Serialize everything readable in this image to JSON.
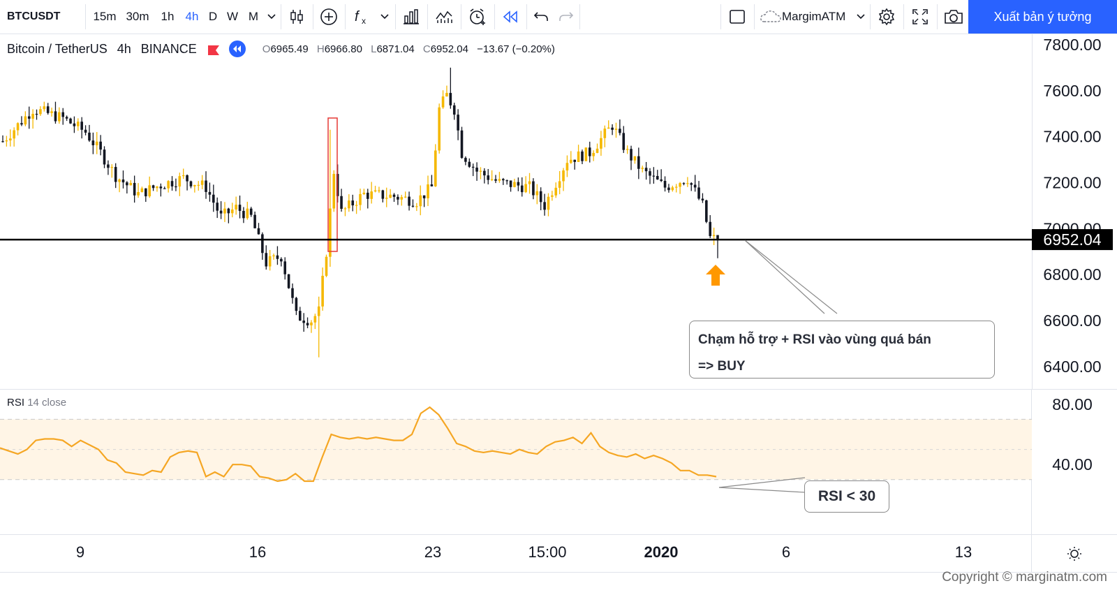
{
  "toolbar": {
    "symbol": "BTCUSDT",
    "timeframes": [
      "15m",
      "30m",
      "1h",
      "4h",
      "D",
      "W",
      "M"
    ],
    "active_timeframe": "4h",
    "account_label": "MargimATM",
    "publish_label": "Xuất bản ý tưởng"
  },
  "legend": {
    "title": "Bitcoin / TetherUS",
    "interval": "4h",
    "exchange": "BINANCE",
    "o_label": "O",
    "o_value": "6965.49",
    "h_label": "H",
    "h_value": "6966.80",
    "l_label": "L",
    "l_value": "6871.04",
    "c_label": "C",
    "c_value": "6952.04",
    "change": "−13.67 (−0.20%)"
  },
  "price_axis": {
    "ticks": [
      "7800.00",
      "7600.00",
      "7400.00",
      "7200.00",
      "7000.00",
      "6800.00",
      "6600.00",
      "6400.00"
    ],
    "current_price_label": "6952.04",
    "current_price": 6952.04
  },
  "annotations": {
    "buy_callout_line1": "Chạm hỗ trợ + RSI vào vùng quá bán",
    "buy_callout_line2": "=> BUY",
    "rsi_callout": "RSI < 30"
  },
  "rsi": {
    "title": "RSI",
    "params": "14 close",
    "ticks": [
      "80.00",
      "40.00"
    ],
    "band_upper": 70,
    "band_middle": 50,
    "band_lower": 30
  },
  "time_axis": {
    "labels": [
      "9",
      "16",
      "23",
      "15:00",
      "2020",
      "6",
      "13"
    ]
  },
  "copyright": "Copyright © marginatm.com",
  "colors": {
    "up_candle": "#f5b800",
    "down_candle": "#131722",
    "rsi_line": "#f5a623",
    "arrow": "#ff9800",
    "accent": "#2962ff",
    "highlight_box": "#e53935"
  },
  "chart_data": {
    "type": "candlestick",
    "symbol": "BTCUSDT",
    "interval": "4h",
    "ylim": [
      6350,
      7850
    ],
    "support_level": 6952.04,
    "close_path": [
      {
        "t": 0,
        "c": 7380
      },
      {
        "t": 8,
        "c": 7520
      },
      {
        "t": 16,
        "c": 7480
      },
      {
        "t": 22,
        "c": 7420
      },
      {
        "t": 26,
        "c": 7330
      },
      {
        "t": 30,
        "c": 7230
      },
      {
        "t": 36,
        "c": 7150
      },
      {
        "t": 42,
        "c": 7190
      },
      {
        "t": 48,
        "c": 7220
      },
      {
        "t": 54,
        "c": 7180
      },
      {
        "t": 58,
        "c": 7050
      },
      {
        "t": 62,
        "c": 7090
      },
      {
        "t": 66,
        "c": 7050
      },
      {
        "t": 70,
        "c": 6850
      },
      {
        "t": 74,
        "c": 6880
      },
      {
        "t": 78,
        "c": 6620
      },
      {
        "t": 82,
        "c": 6600
      },
      {
        "t": 84,
        "c": 6640
      },
      {
        "t": 86,
        "c": 6900
      },
      {
        "t": 88,
        "c": 7250
      },
      {
        "t": 90,
        "c": 7070
      },
      {
        "t": 96,
        "c": 7150
      },
      {
        "t": 104,
        "c": 7140
      },
      {
        "t": 110,
        "c": 7120
      },
      {
        "t": 114,
        "c": 7180
      },
      {
        "t": 116,
        "c": 7520
      },
      {
        "t": 118,
        "c": 7580
      },
      {
        "t": 120,
        "c": 7520
      },
      {
        "t": 122,
        "c": 7330
      },
      {
        "t": 126,
        "c": 7250
      },
      {
        "t": 132,
        "c": 7200
      },
      {
        "t": 140,
        "c": 7180
      },
      {
        "t": 144,
        "c": 7100
      },
      {
        "t": 150,
        "c": 7300
      },
      {
        "t": 156,
        "c": 7330
      },
      {
        "t": 162,
        "c": 7450
      },
      {
        "t": 166,
        "c": 7330
      },
      {
        "t": 170,
        "c": 7250
      },
      {
        "t": 176,
        "c": 7180
      },
      {
        "t": 182,
        "c": 7220
      },
      {
        "t": 186,
        "c": 7100
      },
      {
        "t": 188,
        "c": 6960
      },
      {
        "t": 190,
        "c": 6952
      }
    ],
    "rsi_values": [
      51,
      49,
      47,
      50,
      56,
      57,
      57,
      56,
      52,
      56,
      53,
      50,
      43,
      41,
      35,
      34,
      33,
      36,
      35,
      45,
      48,
      49,
      48,
      32,
      35,
      32,
      40,
      40,
      39,
      32,
      31,
      29,
      30,
      34,
      29,
      29,
      45,
      60,
      58,
      57,
      58,
      57,
      58,
      57,
      56,
      56,
      60,
      74,
      78,
      73,
      64,
      54,
      52,
      49,
      48,
      49,
      48,
      47,
      50,
      48,
      47,
      52,
      55,
      56,
      58,
      54,
      61,
      52,
      48,
      46,
      45,
      47,
      44,
      46,
      44,
      41,
      36,
      36,
      33,
      33,
      32
    ]
  }
}
